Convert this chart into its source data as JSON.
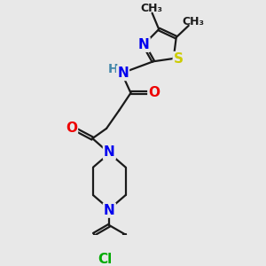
{
  "bg_color": "#e8e8e8",
  "bond_color": "#1a1a1a",
  "bond_width": 1.6,
  "atom_colors": {
    "N": "#0000ee",
    "O": "#ee0000",
    "S": "#cccc00",
    "Cl": "#00aa00",
    "H": "#4488aa",
    "C": "#1a1a1a"
  },
  "font_size": 11,
  "font_size_small": 9,
  "dbo": 0.055
}
